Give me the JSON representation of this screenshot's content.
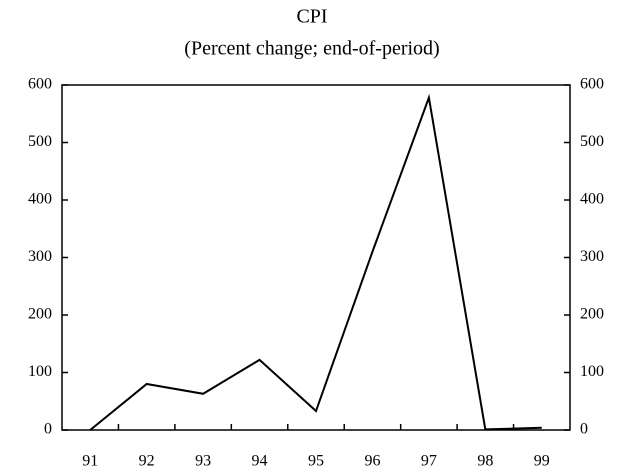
{
  "chart_data": {
    "type": "line",
    "title": "CPI",
    "subtitle": "(Percent change; end-of-period)",
    "categories": [
      "91",
      "92",
      "93",
      "94",
      "95",
      "96",
      "97",
      "98",
      "99"
    ],
    "series": [
      {
        "name": "CPI",
        "color": "#000000",
        "values": [
          0,
          80,
          63,
          122,
          33,
          310,
          578,
          1,
          4
        ]
      }
    ],
    "ylim": [
      0,
      600
    ],
    "yticks": [
      0,
      100,
      200,
      300,
      400,
      500,
      600
    ],
    "y2lim": [
      0,
      600
    ],
    "y2ticks": [
      0,
      100,
      200,
      300,
      400,
      500,
      600
    ],
    "grid": false
  }
}
